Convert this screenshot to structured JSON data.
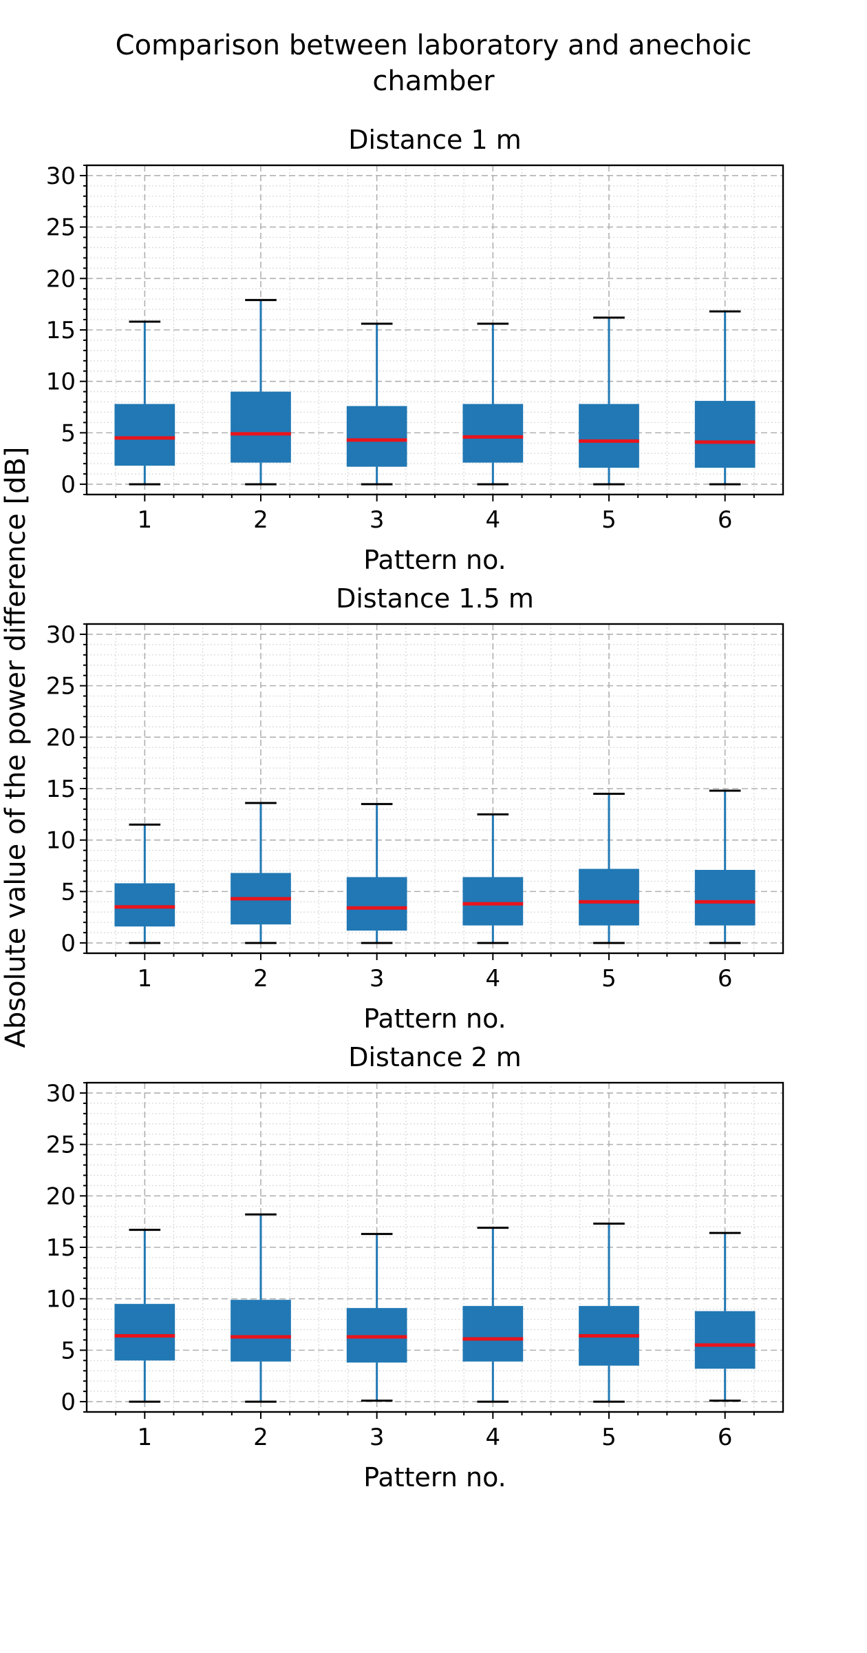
{
  "figure": {
    "title": "Comparison between laboratory and anechoic\nchamber",
    "shared_ylabel": "Absolute value of the power difference [dB]"
  },
  "colors": {
    "box": "#2178b4",
    "whisker": "#2178b4",
    "median": "#e8141c",
    "cap": "#000000",
    "grid_major": "#b0b0b0",
    "grid_minor": "#d8d8d8"
  },
  "chart_data": [
    {
      "type": "box",
      "title": "Distance 1 m",
      "xlabel": "Pattern no.",
      "ylabel": "",
      "categories": [
        "1",
        "2",
        "3",
        "4",
        "5",
        "6"
      ],
      "ylim": [
        -1,
        31
      ],
      "yticks": [
        0,
        5,
        10,
        15,
        20,
        25,
        30
      ],
      "grid": "major dashed, minor dotted",
      "boxes": [
        {
          "whislo": 0.0,
          "q1": 1.8,
          "med": 4.5,
          "q3": 7.8,
          "whishi": 15.8
        },
        {
          "whislo": 0.0,
          "q1": 2.1,
          "med": 4.9,
          "q3": 9.0,
          "whishi": 17.9
        },
        {
          "whislo": 0.0,
          "q1": 1.7,
          "med": 4.3,
          "q3": 7.6,
          "whishi": 15.6
        },
        {
          "whislo": 0.0,
          "q1": 2.1,
          "med": 4.6,
          "q3": 7.8,
          "whishi": 15.6
        },
        {
          "whislo": 0.0,
          "q1": 1.6,
          "med": 4.2,
          "q3": 7.8,
          "whishi": 16.2
        },
        {
          "whislo": 0.0,
          "q1": 1.6,
          "med": 4.1,
          "q3": 8.1,
          "whishi": 16.8
        }
      ]
    },
    {
      "type": "box",
      "title": "Distance 1.5 m",
      "xlabel": "Pattern no.",
      "ylabel": "",
      "categories": [
        "1",
        "2",
        "3",
        "4",
        "5",
        "6"
      ],
      "ylim": [
        -1,
        31
      ],
      "yticks": [
        0,
        5,
        10,
        15,
        20,
        25,
        30
      ],
      "grid": "major dashed, minor dotted",
      "boxes": [
        {
          "whislo": 0.0,
          "q1": 1.6,
          "med": 3.5,
          "q3": 5.8,
          "whishi": 11.5
        },
        {
          "whislo": 0.0,
          "q1": 1.8,
          "med": 4.3,
          "q3": 6.8,
          "whishi": 13.6
        },
        {
          "whislo": 0.0,
          "q1": 1.2,
          "med": 3.4,
          "q3": 6.4,
          "whishi": 13.5
        },
        {
          "whislo": 0.0,
          "q1": 1.7,
          "med": 3.8,
          "q3": 6.4,
          "whishi": 12.5
        },
        {
          "whislo": 0.0,
          "q1": 1.7,
          "med": 4.0,
          "q3": 7.2,
          "whishi": 14.5
        },
        {
          "whislo": 0.0,
          "q1": 1.7,
          "med": 4.0,
          "q3": 7.1,
          "whishi": 14.8
        }
      ]
    },
    {
      "type": "box",
      "title": "Distance 2 m",
      "xlabel": "Pattern no.",
      "ylabel": "",
      "categories": [
        "1",
        "2",
        "3",
        "4",
        "5",
        "6"
      ],
      "ylim": [
        -1,
        31
      ],
      "yticks": [
        0,
        5,
        10,
        15,
        20,
        25,
        30
      ],
      "grid": "major dashed, minor dotted",
      "boxes": [
        {
          "whislo": 0.0,
          "q1": 4.0,
          "med": 6.4,
          "q3": 9.5,
          "whishi": 16.7
        },
        {
          "whislo": 0.0,
          "q1": 3.9,
          "med": 6.3,
          "q3": 9.9,
          "whishi": 18.2
        },
        {
          "whislo": 0.1,
          "q1": 3.8,
          "med": 6.3,
          "q3": 9.1,
          "whishi": 16.3
        },
        {
          "whislo": 0.0,
          "q1": 3.9,
          "med": 6.1,
          "q3": 9.3,
          "whishi": 16.9
        },
        {
          "whislo": 0.0,
          "q1": 3.5,
          "med": 6.4,
          "q3": 9.3,
          "whishi": 17.3
        },
        {
          "whislo": 0.1,
          "q1": 3.2,
          "med": 5.5,
          "q3": 8.8,
          "whishi": 16.4
        }
      ]
    }
  ]
}
